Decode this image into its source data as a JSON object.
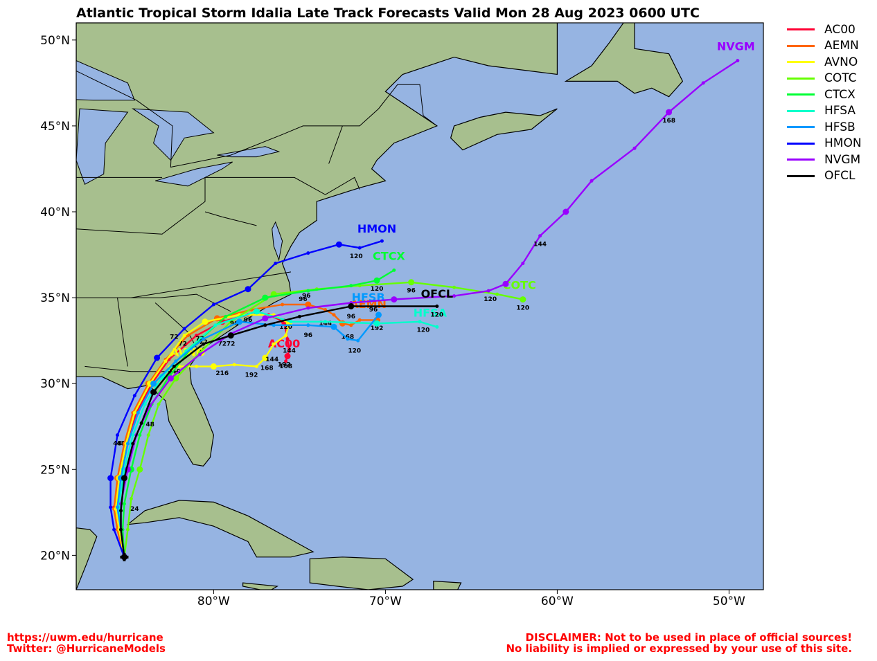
{
  "title": "Atlantic Tropical Storm Idalia Late Track Forecasts Valid Mon 28 Aug 2023 0600 UTC",
  "colors": {
    "ocean": "#96b4e2",
    "land": "#a7bf8e",
    "land_dark": "#7f9e6a",
    "AC00": "#ff0033",
    "AEMN": "#ff6600",
    "AVNO": "#ffff00",
    "COTC": "#66ff00",
    "CTCX": "#00ff33",
    "HFSA": "#00ffcc",
    "HFSB": "#0099ff",
    "HMON": "#0000ff",
    "NVGM": "#9900ff",
    "OFCL": "#000000"
  },
  "lat_labels": [
    "20°N",
    "25°N",
    "30°N",
    "35°N",
    "40°N",
    "45°N",
    "50°N"
  ],
  "lon_labels": [
    "80°W",
    "70°W",
    "60°W",
    "50°W"
  ],
  "legend": [
    "AC00",
    "AEMN",
    "AVNO",
    "COTC",
    "CTCX",
    "HFSA",
    "HFSB",
    "HMON",
    "NVGM",
    "OFCL"
  ],
  "footer": {
    "left_line1": "https://uwm.edu/hurricane",
    "left_line2": "Twitter: @HurricaneModels",
    "right_line1": "DISCLAIMER: Not to be used in place of official sources!",
    "right_line2": "No liability is implied or expressed by your use of this site."
  },
  "chart_data": {
    "type": "map",
    "xlim": [
      -88,
      -48
    ],
    "ylim": [
      18,
      51
    ],
    "initial_position": [
      -85.2,
      19.9
    ],
    "tracks": [
      {
        "name": "AC00",
        "points": [
          [
            -85.2,
            19.9
          ],
          [
            -85.6,
            21.5
          ],
          [
            -85.8,
            22.8
          ],
          [
            -85.5,
            24.5
          ],
          [
            -85.0,
            26.5
          ],
          [
            -84.5,
            28.3
          ],
          [
            -83.6,
            30.0
          ],
          [
            -82.6,
            31.4
          ],
          [
            -81.0,
            32.8
          ],
          [
            -79.5,
            33.6
          ],
          [
            -78.0,
            34.0
          ],
          [
            -76.8,
            34.0
          ],
          [
            -75.9,
            33.6
          ],
          [
            -75.7,
            32.6
          ],
          [
            -75.6,
            32.0
          ],
          [
            -75.7,
            31.6
          ],
          [
            -75.8,
            31.3
          ]
        ],
        "labels": [
          {
            "text": "48",
            "lon": -85.4,
            "lat": 26.4
          },
          {
            "text": "96",
            "lon": -78.0,
            "lat": 33.6
          },
          {
            "text": "144",
            "lon": -75.6,
            "lat": 31.8
          },
          {
            "text": "168",
            "lon": -75.8,
            "lat": 30.9
          },
          {
            "text": "192",
            "lon": -75.9,
            "lat": 31.0
          }
        ],
        "name_pos": [
          -75.9,
          32.1
        ]
      },
      {
        "name": "AEMN",
        "points": [
          [
            -85.2,
            19.9
          ],
          [
            -85.6,
            21.5
          ],
          [
            -85.8,
            22.7
          ],
          [
            -85.6,
            24.5
          ],
          [
            -85.2,
            26.5
          ],
          [
            -84.7,
            28.3
          ],
          [
            -83.8,
            30.0
          ],
          [
            -82.8,
            31.4
          ],
          [
            -81.5,
            32.8
          ],
          [
            -79.8,
            33.8
          ],
          [
            -77.8,
            34.3
          ],
          [
            -76.0,
            34.6
          ],
          [
            -74.5,
            34.6
          ],
          [
            -73.5,
            34.3
          ],
          [
            -73.0,
            34.0
          ],
          [
            -72.5,
            33.5
          ],
          [
            -72.0,
            33.4
          ],
          [
            -71.5,
            33.7
          ],
          [
            -70.5,
            33.7
          ],
          [
            -70.4,
            33.7
          ]
        ],
        "labels": [
          {
            "text": "72",
            "lon": -81.8,
            "lat": 32.2
          },
          {
            "text": "96",
            "lon": -74.6,
            "lat": 35.0
          },
          {
            "text": "144",
            "lon": -73.5,
            "lat": 33.4
          },
          {
            "text": "168",
            "lon": -72.2,
            "lat": 32.6
          },
          {
            "text": "192",
            "lon": -70.5,
            "lat": 33.1
          }
        ],
        "name_pos": [
          -71.0,
          34.4
        ]
      },
      {
        "name": "AVNO",
        "points": [
          [
            -85.2,
            19.9
          ],
          [
            -85.5,
            21.5
          ],
          [
            -85.7,
            22.7
          ],
          [
            -85.5,
            24.5
          ],
          [
            -85.1,
            26.5
          ],
          [
            -84.6,
            28.3
          ],
          [
            -83.7,
            30.0
          ],
          [
            -82.8,
            31.3
          ],
          [
            -81.7,
            32.8
          ],
          [
            -80.5,
            33.6
          ],
          [
            -78.5,
            34.0
          ],
          [
            -76.5,
            34.0
          ],
          [
            -75.6,
            33.5
          ],
          [
            -75.8,
            32.8
          ],
          [
            -76.5,
            32.3
          ],
          [
            -77.0,
            31.5
          ],
          [
            -77.5,
            31.0
          ],
          [
            -78.8,
            31.1
          ],
          [
            -80.0,
            31.0
          ],
          [
            -81.0,
            31.0
          ],
          [
            -82.0,
            31.0
          ],
          [
            -82.5,
            30.9
          ]
        ],
        "labels": [
          {
            "text": "120",
            "lon": -75.8,
            "lat": 33.2
          },
          {
            "text": "144",
            "lon": -76.6,
            "lat": 31.3
          },
          {
            "text": "168",
            "lon": -76.9,
            "lat": 30.8
          },
          {
            "text": "192",
            "lon": -77.8,
            "lat": 30.4
          },
          {
            "text": "216",
            "lon": -79.5,
            "lat": 30.5
          },
          {
            "text": "240",
            "lon": -82.3,
            "lat": 30.6
          }
        ],
        "name_pos": [
          -81.5,
          31.6
        ]
      },
      {
        "name": "COTC",
        "points": [
          [
            -85.2,
            19.9
          ],
          [
            -85.0,
            21.5
          ],
          [
            -84.8,
            23.3
          ],
          [
            -84.3,
            25.0
          ],
          [
            -83.8,
            27.0
          ],
          [
            -83.2,
            28.8
          ],
          [
            -82.2,
            30.3
          ],
          [
            -80.8,
            31.8
          ],
          [
            -79.0,
            33.6
          ],
          [
            -76.5,
            35.2
          ],
          [
            -74.0,
            35.5
          ],
          [
            -71.5,
            35.7
          ],
          [
            -68.5,
            35.9
          ],
          [
            -66.0,
            35.6
          ],
          [
            -63.5,
            35.2
          ],
          [
            -62.0,
            34.9
          ]
        ],
        "labels": [
          {
            "text": "24",
            "lon": -84.6,
            "lat": 22.6
          },
          {
            "text": "96",
            "lon": -68.5,
            "lat": 35.3
          },
          {
            "text": "120",
            "lon": -62.0,
            "lat": 34.3
          }
        ],
        "name_pos": [
          -62.2,
          35.5
        ]
      },
      {
        "name": "CTCX",
        "points": [
          [
            -85.2,
            19.9
          ],
          [
            -85.3,
            21.5
          ],
          [
            -85.2,
            23.0
          ],
          [
            -84.8,
            25.0
          ],
          [
            -84.3,
            27.0
          ],
          [
            -83.6,
            28.8
          ],
          [
            -82.6,
            30.4
          ],
          [
            -81.2,
            32.2
          ],
          [
            -79.3,
            33.9
          ],
          [
            -77.0,
            35.0
          ],
          [
            -74.5,
            35.4
          ],
          [
            -72.0,
            35.7
          ],
          [
            -70.5,
            36.0
          ],
          [
            -69.5,
            36.6
          ]
        ],
        "labels": [
          {
            "text": "72",
            "lon": -80.6,
            "lat": 32.3
          },
          {
            "text": "96",
            "lon": -74.8,
            "lat": 34.8
          },
          {
            "text": "120",
            "lon": -70.5,
            "lat": 35.4
          }
        ],
        "name_pos": [
          -69.8,
          37.2
        ]
      },
      {
        "name": "HFSA",
        "points": [
          [
            -85.2,
            19.9
          ],
          [
            -85.4,
            21.5
          ],
          [
            -85.5,
            23.0
          ],
          [
            -85.2,
            25.0
          ],
          [
            -84.7,
            27.0
          ],
          [
            -84.0,
            28.8
          ],
          [
            -83.0,
            30.4
          ],
          [
            -81.6,
            31.9
          ],
          [
            -79.9,
            33.4
          ],
          [
            -77.5,
            34.2
          ],
          [
            -75.5,
            33.6
          ],
          [
            -73.5,
            33.6
          ],
          [
            -70.5,
            33.5
          ],
          [
            -68.0,
            33.6
          ],
          [
            -67.0,
            33.3
          ]
        ],
        "labels": [
          {
            "text": "72",
            "lon": -80.8,
            "lat": 32.5
          },
          {
            "text": "96",
            "lon": -78.8,
            "lat": 33.4
          },
          {
            "text": "120",
            "lon": -67.8,
            "lat": 33.0
          }
        ],
        "name_pos": [
          -67.4,
          33.9
        ]
      },
      {
        "name": "HFSB",
        "points": [
          [
            -85.2,
            19.9
          ],
          [
            -85.4,
            21.5
          ],
          [
            -85.6,
            22.8
          ],
          [
            -85.4,
            24.5
          ],
          [
            -85.0,
            26.5
          ],
          [
            -84.4,
            28.3
          ],
          [
            -83.5,
            30.0
          ],
          [
            -82.2,
            31.3
          ],
          [
            -80.6,
            32.6
          ],
          [
            -78.5,
            33.6
          ],
          [
            -76.5,
            33.4
          ],
          [
            -74.5,
            33.4
          ],
          [
            -73.0,
            33.3
          ],
          [
            -72.2,
            32.6
          ],
          [
            -71.6,
            32.5
          ],
          [
            -70.4,
            34.0
          ]
        ],
        "labels": [
          {
            "text": "72",
            "lon": -79.5,
            "lat": 32.2
          },
          {
            "text": "96",
            "lon": -74.5,
            "lat": 32.7
          },
          {
            "text": "120",
            "lon": -71.8,
            "lat": 31.8
          }
        ],
        "name_pos": [
          -71.0,
          34.8
        ]
      },
      {
        "name": "HMON",
        "points": [
          [
            -85.2,
            19.9
          ],
          [
            -85.8,
            21.5
          ],
          [
            -86.0,
            22.8
          ],
          [
            -86.0,
            24.5
          ],
          [
            -85.6,
            27.0
          ],
          [
            -84.6,
            29.3
          ],
          [
            -83.3,
            31.5
          ],
          [
            -81.7,
            33.2
          ],
          [
            -80.0,
            34.6
          ],
          [
            -78.0,
            35.5
          ],
          [
            -76.4,
            37.0
          ],
          [
            -74.5,
            37.6
          ],
          [
            -72.7,
            38.1
          ],
          [
            -71.5,
            37.9
          ],
          [
            -70.2,
            38.3
          ]
        ],
        "labels": [
          {
            "text": "48",
            "lon": -85.6,
            "lat": 26.4
          },
          {
            "text": "72",
            "lon": -82.3,
            "lat": 32.6
          },
          {
            "text": "120",
            "lon": -71.7,
            "lat": 37.3
          }
        ],
        "name_pos": [
          -70.5,
          38.8
        ]
      },
      {
        "name": "NVGM",
        "points": [
          [
            -85.2,
            19.9
          ],
          [
            -85.4,
            21.5
          ],
          [
            -85.4,
            23.0
          ],
          [
            -85.0,
            25.0
          ],
          [
            -84.5,
            27.0
          ],
          [
            -83.7,
            28.7
          ],
          [
            -82.5,
            30.3
          ],
          [
            -80.8,
            31.7
          ],
          [
            -79.0,
            32.9
          ],
          [
            -77.0,
            33.8
          ],
          [
            -74.5,
            34.4
          ],
          [
            -72.0,
            34.7
          ],
          [
            -69.5,
            34.9
          ],
          [
            -66.0,
            35.1
          ],
          [
            -64.0,
            35.4
          ],
          [
            -63.0,
            35.8
          ],
          [
            -62.0,
            37.0
          ],
          [
            -61.0,
            38.6
          ],
          [
            -59.5,
            40.0
          ],
          [
            -58.0,
            41.8
          ],
          [
            -55.5,
            43.7
          ],
          [
            -53.5,
            45.8
          ],
          [
            -51.5,
            47.5
          ],
          [
            -49.5,
            48.8
          ]
        ],
        "labels": [
          {
            "text": "96",
            "lon": -70.7,
            "lat": 34.2
          },
          {
            "text": "120",
            "lon": -63.9,
            "lat": 34.8
          },
          {
            "text": "144",
            "lon": -61.0,
            "lat": 38.0
          },
          {
            "text": "168",
            "lon": -53.5,
            "lat": 45.2
          }
        ],
        "name_pos": [
          -49.6,
          49.4
        ]
      },
      {
        "name": "OFCL",
        "points": [
          [
            -85.2,
            19.9
          ],
          [
            -85.4,
            21.5
          ],
          [
            -85.4,
            22.6
          ],
          [
            -85.2,
            24.5
          ],
          [
            -84.7,
            26.5
          ],
          [
            -84.2,
            27.7
          ],
          [
            -83.5,
            29.5
          ],
          [
            -82.3,
            31.0
          ],
          [
            -80.6,
            32.3
          ],
          [
            -79.0,
            32.8
          ],
          [
            -77.0,
            33.4
          ],
          [
            -75.0,
            33.9
          ],
          [
            -72.0,
            34.5
          ],
          [
            -67.0,
            34.5
          ]
        ],
        "labels": [
          {
            "text": "48",
            "lon": -83.7,
            "lat": 27.5
          },
          {
            "text": "72",
            "lon": -79.0,
            "lat": 32.2
          },
          {
            "text": "96",
            "lon": -72.0,
            "lat": 33.8
          },
          {
            "text": "120",
            "lon": -67.0,
            "lat": 33.9
          }
        ],
        "name_pos": [
          -67.0,
          35.0
        ]
      }
    ]
  }
}
